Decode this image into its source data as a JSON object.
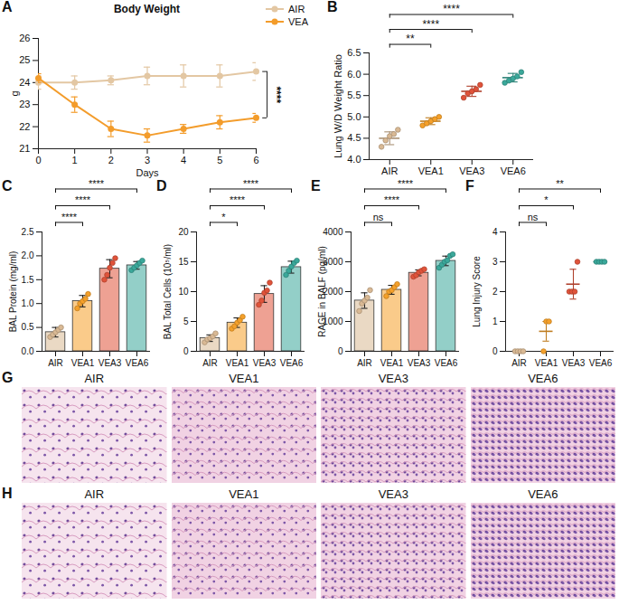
{
  "chart_data": [
    {
      "panel": "A",
      "type": "line",
      "title": "Body Weight",
      "xlabel": "Days",
      "ylabel": "g",
      "x": [
        0,
        1,
        2,
        3,
        4,
        5,
        6
      ],
      "xlim": [
        0,
        6
      ],
      "xticks": [
        0,
        1,
        2,
        3,
        4,
        5,
        6
      ],
      "ylim": [
        21,
        26
      ],
      "yticks": [
        21,
        22,
        23,
        24,
        25,
        26
      ],
      "legend": "top-right",
      "marker": "circle",
      "series": [
        {
          "name": "AIR",
          "color": "#e3c7a3",
          "values": [
            24.0,
            24.0,
            24.1,
            24.3,
            24.3,
            24.3,
            24.5
          ],
          "errors": [
            0.3,
            0.3,
            0.2,
            0.4,
            0.5,
            0.5,
            0.4
          ]
        },
        {
          "name": "VEA",
          "color": "#f39c2b",
          "values": [
            24.2,
            23.0,
            21.9,
            21.6,
            21.9,
            22.2,
            22.4
          ],
          "errors": [
            0.2,
            0.35,
            0.35,
            0.3,
            0.2,
            0.3,
            0.2
          ]
        }
      ],
      "comparisons": [
        {
          "from": "AIR",
          "to": "VEA",
          "label": "****"
        }
      ]
    },
    {
      "panel": "B",
      "type": "scatter",
      "ylabel": "Lung W/D Weight Ratio",
      "categories": [
        "AIR",
        "VEA1",
        "VEA3",
        "VEA6"
      ],
      "colors": [
        "#d9b994",
        "#f5a02a",
        "#e0533a",
        "#3aa89a"
      ],
      "values": [
        4.5,
        4.9,
        5.6,
        5.92
      ],
      "errors": [
        0.15,
        0.08,
        0.12,
        0.1
      ],
      "points": [
        [
          4.3,
          4.45,
          4.55,
          4.6,
          4.7
        ],
        [
          4.8,
          4.85,
          4.9,
          4.95,
          5.0
        ],
        [
          5.45,
          5.55,
          5.6,
          5.65,
          5.75
        ],
        [
          5.8,
          5.85,
          5.9,
          5.95,
          6.05
        ]
      ],
      "ylim": [
        4,
        6.5
      ],
      "yticks": [
        {
          "value": 4,
          "label": "4.0"
        },
        4.5,
        {
          "value": 5,
          "label": "5.0"
        },
        5.5,
        {
          "value": 6,
          "label": "6.0"
        },
        6.5
      ],
      "comparisons": [
        {
          "from": "AIR",
          "to": "VEA1",
          "label": "**"
        },
        {
          "from": "AIR",
          "to": "VEA3",
          "label": "****"
        },
        {
          "from": "AIR",
          "to": "VEA6",
          "label": "****"
        }
      ]
    },
    {
      "panel": "C",
      "type": "bar",
      "ylabel": "BAL Protein (mg/ml)",
      "categories": [
        "AIR",
        "VEA1",
        "VEA3",
        "VEA6"
      ],
      "colors": [
        "#d9b994",
        "#f5a02a",
        "#e0533a",
        "#3aa89a"
      ],
      "values": [
        0.4,
        1.05,
        1.73,
        1.8
      ],
      "errors": [
        0.1,
        0.12,
        0.19,
        0.08
      ],
      "points": [
        [
          0.3,
          0.35,
          0.4,
          0.45,
          0.5
        ],
        [
          0.9,
          1.0,
          1.05,
          1.1,
          1.2
        ],
        [
          1.5,
          1.6,
          1.75,
          1.85,
          1.95
        ],
        [
          1.7,
          1.75,
          1.8,
          1.85,
          1.9
        ]
      ],
      "ylim": [
        0,
        2.5
      ],
      "yticks": [
        {
          "value": 0,
          "label": "0.0"
        },
        0.5,
        {
          "value": 1,
          "label": "1.0"
        },
        1.5,
        {
          "value": 2,
          "label": "2.0"
        },
        2.5
      ],
      "comparisons": [
        {
          "from": "AIR",
          "to": "VEA1",
          "label": "****"
        },
        {
          "from": "AIR",
          "to": "VEA3",
          "label": "****"
        },
        {
          "from": "AIR",
          "to": "VEA6",
          "label": "****"
        }
      ]
    },
    {
      "panel": "D",
      "type": "bar",
      "ylabel": "BAL Total Cells (10⁵/ml)",
      "categories": [
        "AIR",
        "VEA1",
        "VEA3",
        "VEA6"
      ],
      "colors": [
        "#d9b994",
        "#f5a02a",
        "#e0533a",
        "#3aa89a"
      ],
      "values": [
        2.2,
        4.8,
        9.6,
        14.1
      ],
      "errors": [
        0.55,
        0.8,
        1.4,
        1.0
      ],
      "points": [
        [
          1.5,
          2.0,
          2.2,
          2.5,
          3.0
        ],
        [
          3.8,
          4.2,
          4.8,
          5.2,
          5.8
        ],
        [
          7.8,
          8.5,
          9.8,
          10.2,
          11.5
        ],
        [
          12.8,
          13.5,
          14.2,
          14.8,
          15.2
        ]
      ],
      "ylim": [
        0,
        20
      ],
      "yticks": [
        0,
        5,
        10,
        15,
        20
      ],
      "comparisons": [
        {
          "from": "AIR",
          "to": "VEA1",
          "label": "*"
        },
        {
          "from": "AIR",
          "to": "VEA3",
          "label": "****"
        },
        {
          "from": "AIR",
          "to": "VEA6",
          "label": "****"
        }
      ]
    },
    {
      "panel": "E",
      "type": "bar",
      "ylabel": "RAGE in BALF (pg/ml)",
      "categories": [
        "AIR",
        "VEA1",
        "VEA3",
        "VEA6"
      ],
      "colors": [
        "#d9b994",
        "#f5a02a",
        "#e0533a",
        "#3aa89a"
      ],
      "values": [
        1700,
        2060,
        2630,
        3030
      ],
      "errors": [
        260,
        150,
        100,
        160
      ],
      "points": [
        [
          1350,
          1600,
          1700,
          1800,
          2050
        ],
        [
          1850,
          2000,
          2050,
          2150,
          2250
        ],
        [
          2500,
          2550,
          2650,
          2700,
          2750
        ],
        [
          2800,
          2900,
          3000,
          3050,
          3200,
          3250
        ]
      ],
      "ylim": [
        0,
        4000
      ],
      "yticks": [
        0,
        1000,
        2000,
        3000,
        4000
      ],
      "comparisons": [
        {
          "from": "AIR",
          "to": "VEA1",
          "label": "ns"
        },
        {
          "from": "AIR",
          "to": "VEA3",
          "label": "****"
        },
        {
          "from": "AIR",
          "to": "VEA6",
          "label": "****"
        }
      ]
    },
    {
      "panel": "F",
      "type": "scatter",
      "ylabel": "Lung Injury Score",
      "categories": [
        "AIR",
        "VEA1",
        "VEA3",
        "VEA6"
      ],
      "colors": [
        "#d9b994",
        "#f5a02a",
        "#e0533a",
        "#3aa89a"
      ],
      "values": [
        0,
        0.67,
        2.25,
        3
      ],
      "errors": [
        0,
        0.33,
        0.5,
        0
      ],
      "points": [
        [
          0,
          0,
          0,
          0
        ],
        [
          0,
          1,
          1
        ],
        [
          2,
          2,
          2,
          3
        ],
        [
          3,
          3,
          3,
          3
        ]
      ],
      "ylim": [
        0,
        4
      ],
      "yticks": [
        0,
        1,
        2,
        3,
        4
      ],
      "comparisons": [
        {
          "from": "AIR",
          "to": "VEA1",
          "label": "ns"
        },
        {
          "from": "AIR",
          "to": "VEA3",
          "label": "*"
        },
        {
          "from": "AIR",
          "to": "VEA6",
          "label": "**"
        }
      ]
    }
  ],
  "image_panels": [
    {
      "panel": "G",
      "labels": [
        "AIR",
        "VEA1",
        "VEA3",
        "VEA6"
      ]
    },
    {
      "panel": "H",
      "labels": [
        "AIR",
        "VEA1",
        "VEA3",
        "VEA6"
      ]
    }
  ]
}
